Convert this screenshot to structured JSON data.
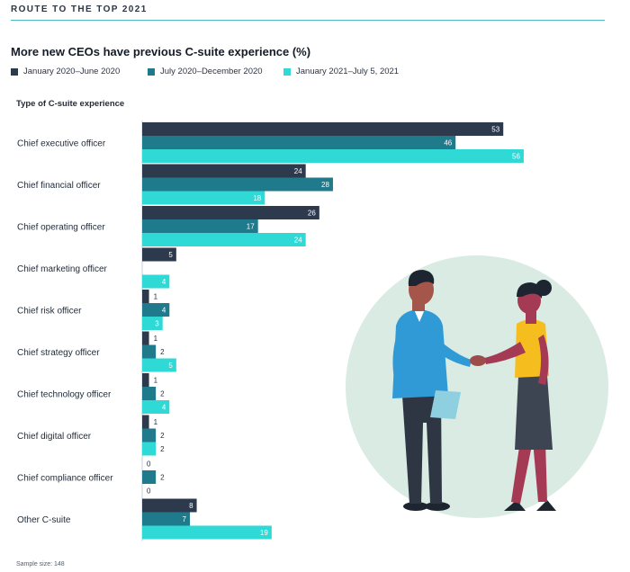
{
  "header": {
    "eyebrow": "ROUTE TO THE TOP 2021"
  },
  "colors": {
    "series1": "#2d3a4d",
    "series2": "#1f7a8c",
    "series3": "#2fd9d6",
    "accent_rule": "#4fb7c4"
  },
  "footnote": "Sample size: 148",
  "illustration": {
    "description_icon": "handshake-illustration"
  },
  "chart_data": {
    "type": "bar",
    "orientation": "horizontal",
    "title": "More new CEOs have previous C-suite experience (%)",
    "category_axis_label": "Type of C-suite experience",
    "categories": [
      "Chief executive officer",
      "Chief financial officer",
      "Chief operating officer",
      "Chief marketing officer",
      "Chief risk officer",
      "Chief strategy officer",
      "Chief technology officer",
      "Chief digital officer",
      "Chief compliance officer",
      "Other C-suite"
    ],
    "series": [
      {
        "name": "January 2020–June 2020",
        "values": [
          53,
          24,
          26,
          5,
          1,
          1,
          1,
          1,
          0,
          8
        ]
      },
      {
        "name": "July 2020–December 2020",
        "values": [
          46,
          28,
          17,
          0,
          4,
          2,
          2,
          2,
          2,
          7
        ]
      },
      {
        "name": "January 2021–July 5, 2021",
        "values": [
          56,
          18,
          24,
          4,
          3,
          5,
          4,
          2,
          0,
          19
        ]
      }
    ],
    "missing_labels": [
      [
        1,
        3
      ]
    ],
    "xlim": [
      0,
      60
    ],
    "legend": "top-left"
  }
}
